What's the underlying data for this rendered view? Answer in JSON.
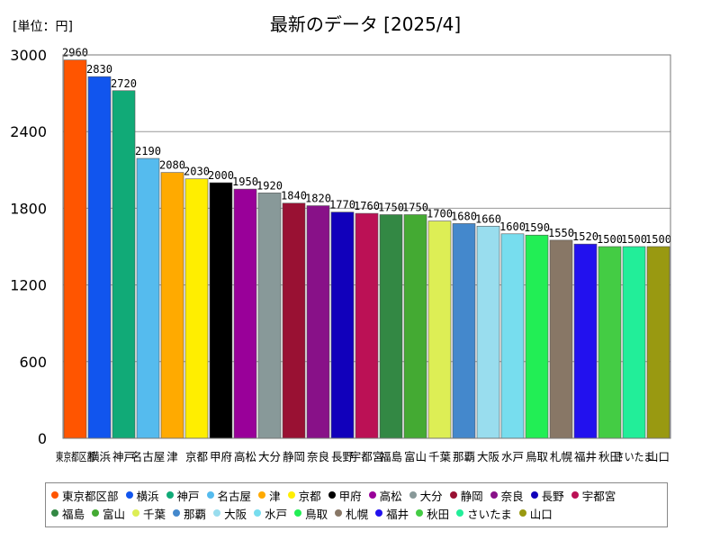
{
  "chart_data": {
    "type": "bar",
    "title": "最新のデータ [2025/4]",
    "unit_label": "[単位：円]",
    "ylim": [
      0,
      3000
    ],
    "yticks": [
      0,
      600,
      1200,
      1800,
      2400,
      3000
    ],
    "grid": true,
    "legend_position": "bottom",
    "categories": [
      "東京都区部",
      "横浜",
      "神戸",
      "名古屋",
      "津",
      "京都",
      "甲府",
      "高松",
      "大分",
      "静岡",
      "奈良",
      "長野",
      "宇都宮",
      "福島",
      "富山",
      "千葉",
      "那覇",
      "大阪",
      "水戸",
      "鳥取",
      "札幌",
      "福井",
      "秋田",
      "さいたま",
      "山口"
    ],
    "tick_labels": [
      "東京都区部",
      "横浜",
      "神戸",
      "名古屋",
      "津",
      "京都",
      "甲府",
      "高松",
      "大分",
      "静岡",
      "奈良",
      "長野",
      "宇都宮",
      "福島",
      "富山",
      "千葉",
      "那覇",
      "大阪",
      "水戸",
      "鳥取",
      "札幌",
      "福井",
      "秋田",
      "さいたま",
      "山口"
    ],
    "value_labels": [
      "2960",
      "2830",
      "2720",
      "2190",
      "2080",
      "2030",
      "2000",
      "1950",
      "1920",
      "1840",
      "1820",
      "1770",
      "1760",
      "1750",
      "1750",
      "1700",
      "1680",
      "1660",
      "1600",
      "1590",
      "1550",
      "1520",
      "1500",
      "1500",
      "1500"
    ],
    "values": [
      2960,
      2830,
      2720,
      2190,
      2080,
      2030,
      2000,
      1950,
      1920,
      1840,
      1820,
      1770,
      1760,
      1750,
      1750,
      1700,
      1680,
      1660,
      1600,
      1590,
      1550,
      1520,
      1500,
      1500,
      1500
    ],
    "colors": [
      "#ff5500",
      "#1155ee",
      "#11aa77",
      "#55bbee",
      "#ffaa00",
      "#ffee00",
      "#000000",
      "#990099",
      "#889999",
      "#991133",
      "#881188",
      "#1100bb",
      "#bb1155",
      "#338844",
      "#44aa33",
      "#ddee55",
      "#4488cc",
      "#99ddee",
      "#77ddee",
      "#22ee55",
      "#887766",
      "#2211ee",
      "#44cc44",
      "#22ee99",
      "#999911"
    ]
  }
}
